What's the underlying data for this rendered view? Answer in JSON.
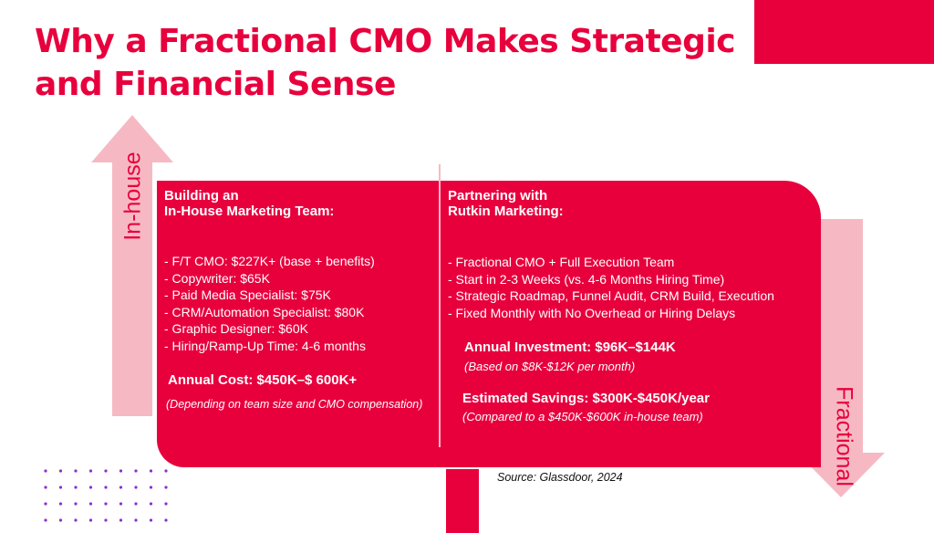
{
  "title_line1": "Why a Fractional CMO Makes Strategic",
  "title_line2": "and Financial Sense",
  "arrow_left_label": "In-house",
  "arrow_right_label": "Fractional",
  "left": {
    "heading_line1": "Building an",
    "heading_line2": "In-House Marketing Team:",
    "items": [
      "- F/T CMO: $227K+ (base + benefits)",
      "- Copywriter: $65K",
      "- Paid Media Specialist: $75K",
      "- CRM/Automation Specialist: $80K",
      "- Graphic Designer: $60K",
      "- Hiring/Ramp-Up Time: 4-6 months"
    ],
    "cost_label": "Annual Cost: $450K–$ 600K+",
    "cost_note": "(Depending on team size and CMO compensation)"
  },
  "right": {
    "heading_line1": "Partnering with",
    "heading_line2": "Rutkin Marketing:",
    "items": [
      "- Fractional CMO + Full Execution Team",
      "- Start in 2-3 Weeks (vs. 4-6 Months Hiring Time)",
      "- Strategic Roadmap, Funnel Audit, CRM Build, Execution",
      "- Fixed Monthly with No Overhead or Hiring Delays"
    ],
    "investment_label": "Annual Investment: $96K–$144K",
    "investment_note": "(Based on $8K-$12K per month)",
    "savings_label": "Estimated Savings: $300K-$450K/year",
    "savings_note": "(Compared to a $450K-$600K in-house team)"
  },
  "source": "Source: Glassdoor, 2024",
  "colors": {
    "accent": "#E8003D",
    "arrow_pink": "#F6B9C3",
    "dots": "#8B2FD0"
  }
}
